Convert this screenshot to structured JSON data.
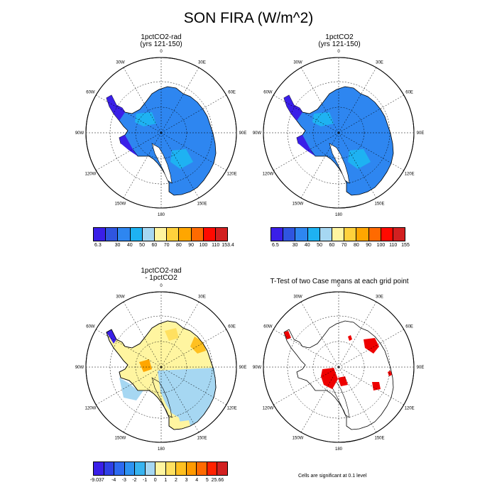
{
  "title": "SON FIRA (W/m^2)",
  "panels": [
    {
      "title_line1": "1pctCO2-rad",
      "title_line2": "(yrs 121-150)",
      "kind": "abs"
    },
    {
      "title_line1": "1pctCO2",
      "title_line2": "(yrs 121-150)",
      "kind": "abs"
    },
    {
      "title_line1": "1pctCO2-rad",
      "title_line2": " - 1pctCO2",
      "kind": "diff"
    },
    {
      "title_line1": "T-Test of two Case means at each grid point",
      "title_line2": "",
      "kind": "ttest"
    }
  ],
  "lon_labels": [
    "0",
    "30E",
    "60E",
    "90E",
    "120E",
    "150E",
    "180",
    "150W",
    "120W",
    "90W",
    "60W",
    "30W"
  ],
  "colorbars": {
    "panel1": {
      "labels": [
        "6.3",
        "30",
        "40",
        "50",
        "60",
        "70",
        "80",
        "90",
        "100",
        "110",
        "153.4"
      ],
      "colors": [
        "#3a1fe8",
        "#2f55e0",
        "#2e86f0",
        "#1eb2f2",
        "#a6d7f2",
        "#fff5a0",
        "#ffd23c",
        "#ffa600",
        "#ff6a00",
        "#ff0a00",
        "#d22020"
      ]
    },
    "panel2": {
      "labels": [
        "6.5",
        "30",
        "40",
        "50",
        "60",
        "70",
        "80",
        "90",
        "100",
        "110",
        "155"
      ],
      "colors": [
        "#3a1fe8",
        "#2f55e0",
        "#2e86f0",
        "#1eb2f2",
        "#a6d7f2",
        "#fff5a0",
        "#ffd23c",
        "#ffa600",
        "#ff6a00",
        "#ff0a00",
        "#d22020"
      ]
    },
    "diff": {
      "labels": [
        "-9.037",
        "-4",
        "-3",
        "-2",
        "-1",
        "0",
        "1",
        "2",
        "3",
        "4",
        "5",
        "25.66"
      ],
      "colors": [
        "#3a1fe8",
        "#2f40e6",
        "#2e6af0",
        "#2e93f2",
        "#38b4f0",
        "#a6d7f2",
        "#fff5a0",
        "#ffe060",
        "#ffc020",
        "#ff9a00",
        "#ff6a00",
        "#ff2200",
        "#d22020"
      ]
    }
  },
  "note": "Cells are significant at 0.1 level",
  "colors": {
    "abs_fill": "#2e86f0",
    "abs_coast": "#3a1fe8",
    "diff_pos": "#fff5a0",
    "diff_neg": "#a6d7f2",
    "signif": "#ee0000"
  }
}
